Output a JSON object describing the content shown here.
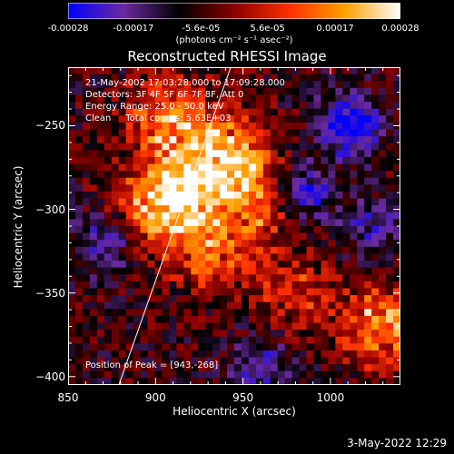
{
  "chart_data": {
    "type": "heatmap",
    "title": "Reconstructed RHESSI Image",
    "xlabel": "Heliocentric X (arcsec)",
    "ylabel": "Heliocentric Y (arcsec)",
    "xlim": [
      850,
      1040
    ],
    "ylim": [
      -405,
      -215
    ],
    "x_ticks": [
      850,
      900,
      950,
      1000
    ],
    "y_ticks": [
      -250,
      -300,
      -350,
      -400
    ],
    "colorbar": {
      "ticks": [
        "-0.00028",
        "-0.00017",
        "-5.6e-05",
        "5.6e-05",
        "0.00017",
        "0.00028"
      ],
      "tick_values": [
        -0.00028,
        -0.00017,
        -5.6e-05,
        5.6e-05,
        0.00017,
        0.00028
      ],
      "unit": "(photons cm⁻² s⁻¹ asec⁻²)",
      "min": -0.00028,
      "max": 0.00028,
      "colormap": [
        "#0000ff",
        "#6a2aa0",
        "#000000",
        "#8a0000",
        "#ff3000",
        "#ffa000",
        "#ffffff"
      ]
    },
    "annotations": [
      "21-May-2002 17:03:28.000 to 17:09:28.000",
      "Detectors: 3F 4F 5F 6F 7F 8F, Att 0",
      "Energy Range: 25.0 - 50.0 keV",
      "Clean     Total counts: 5.63E+03",
      "Position of Peak = [943,-268]"
    ],
    "limb_line": [
      [
        879,
        -405
      ],
      [
        943,
        -215
      ]
    ],
    "peak": [
      943,
      -268
    ],
    "grid_resolution": [
      46,
      46
    ],
    "bright_regions": [
      {
        "x": 908,
        "y": -245,
        "strength": 0.85
      },
      {
        "x": 918,
        "y": -285,
        "strength": 0.95
      },
      {
        "x": 943,
        "y": -268,
        "strength": 1.0
      },
      {
        "x": 900,
        "y": -300,
        "strength": 0.8
      },
      {
        "x": 930,
        "y": -325,
        "strength": 0.7
      },
      {
        "x": 958,
        "y": -300,
        "strength": 0.6
      },
      {
        "x": 1030,
        "y": -370,
        "strength": 0.9
      },
      {
        "x": 980,
        "y": -350,
        "strength": 0.45
      }
    ],
    "dark_regions": [
      {
        "x": 1010,
        "y": -250,
        "strength": 1.0
      },
      {
        "x": 985,
        "y": -290,
        "strength": 0.7
      },
      {
        "x": 870,
        "y": -320,
        "strength": 0.6
      },
      {
        "x": 960,
        "y": -395,
        "strength": 0.6
      },
      {
        "x": 1025,
        "y": -310,
        "strength": 0.5
      }
    ]
  },
  "footer": {
    "timestamp": "3-May-2022 12:29"
  }
}
